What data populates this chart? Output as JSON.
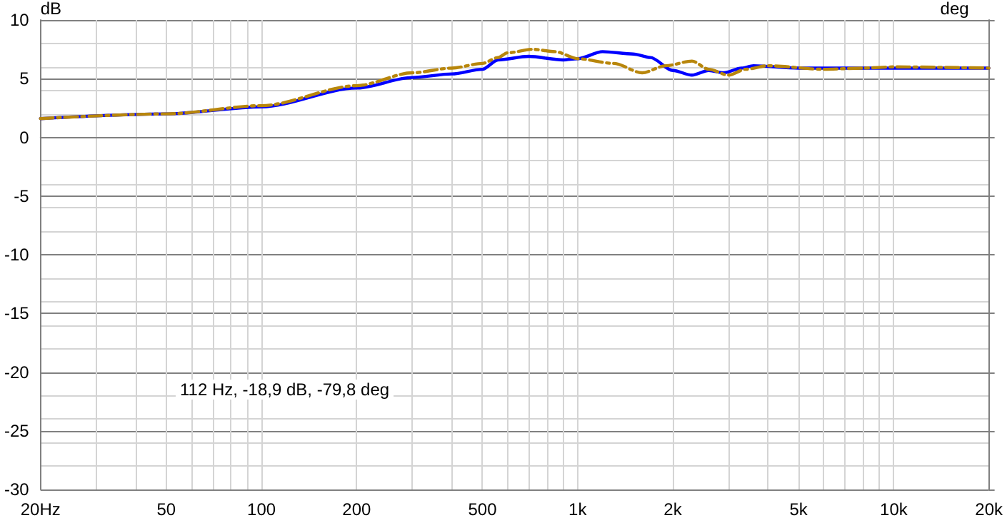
{
  "chart_data": {
    "type": "line",
    "ylabel": "dB",
    "y2label": "deg",
    "annotations": [
      "112 Hz, -18,9 dB, -79,8 deg"
    ],
    "log": "x",
    "grid": true,
    "marker": "none",
    "xlim": [
      20,
      20000
    ],
    "ylim": [
      -30,
      10
    ],
    "xticks": [
      {
        "value": 20,
        "label": "20Hz"
      },
      {
        "value": 30,
        "label": null
      },
      {
        "value": 40,
        "label": null
      },
      50,
      {
        "value": 60,
        "label": null
      },
      {
        "value": 70,
        "label": null
      },
      {
        "value": 80,
        "label": null
      },
      {
        "value": 90,
        "label": null
      },
      100,
      200,
      {
        "value": 300,
        "label": null
      },
      {
        "value": 400,
        "label": null
      },
      500,
      {
        "value": 600,
        "label": null
      },
      {
        "value": 700,
        "label": null
      },
      {
        "value": 800,
        "label": null
      },
      {
        "value": 900,
        "label": null
      },
      {
        "value": 1000,
        "label": "1k"
      },
      {
        "value": 2000,
        "label": "2k"
      },
      {
        "value": 3000,
        "label": null
      },
      {
        "value": 4000,
        "label": null
      },
      {
        "value": 5000,
        "label": "5k"
      },
      {
        "value": 6000,
        "label": null
      },
      {
        "value": 7000,
        "label": null
      },
      {
        "value": 8000,
        "label": null
      },
      {
        "value": 9000,
        "label": null
      },
      {
        "value": 10000,
        "label": "10k"
      },
      {
        "value": 20000,
        "label": "20k"
      }
    ],
    "yticks": [
      -30,
      -25,
      -20,
      -15,
      -10,
      -5,
      0,
      5,
      10
    ],
    "series": [
      {
        "color": "#0000ff",
        "line_style": "solid",
        "x": [
          20,
          50,
          100,
          200,
          300,
          400,
          500,
          560,
          700,
          900,
          1000,
          1200,
          1500,
          1700,
          2000,
          2300,
          2600,
          2900,
          3300,
          3600,
          5000,
          7000,
          10000,
          20000
        ],
        "values": [
          1.6,
          2.0,
          2.6,
          4.2,
          5.1,
          5.4,
          5.8,
          6.6,
          6.9,
          6.6,
          6.7,
          7.3,
          7.1,
          6.8,
          5.7,
          5.3,
          5.7,
          5.5,
          5.9,
          6.1,
          5.9,
          5.9,
          5.9,
          5.9
        ]
      },
      {
        "color": "#b8860b",
        "line_style": "dashed",
        "x": [
          20,
          50,
          100,
          200,
          300,
          400,
          500,
          560,
          600,
          720,
          850,
          1000,
          1300,
          1600,
          1900,
          2300,
          2600,
          3000,
          3400,
          4000,
          6000,
          8000,
          10000,
          20000
        ],
        "values": [
          1.6,
          2.0,
          2.7,
          4.4,
          5.5,
          5.9,
          6.3,
          6.8,
          7.2,
          7.5,
          7.3,
          6.7,
          6.3,
          5.5,
          6.1,
          6.5,
          5.8,
          5.3,
          5.8,
          6.1,
          5.8,
          5.9,
          6.0,
          5.9
        ]
      }
    ]
  }
}
